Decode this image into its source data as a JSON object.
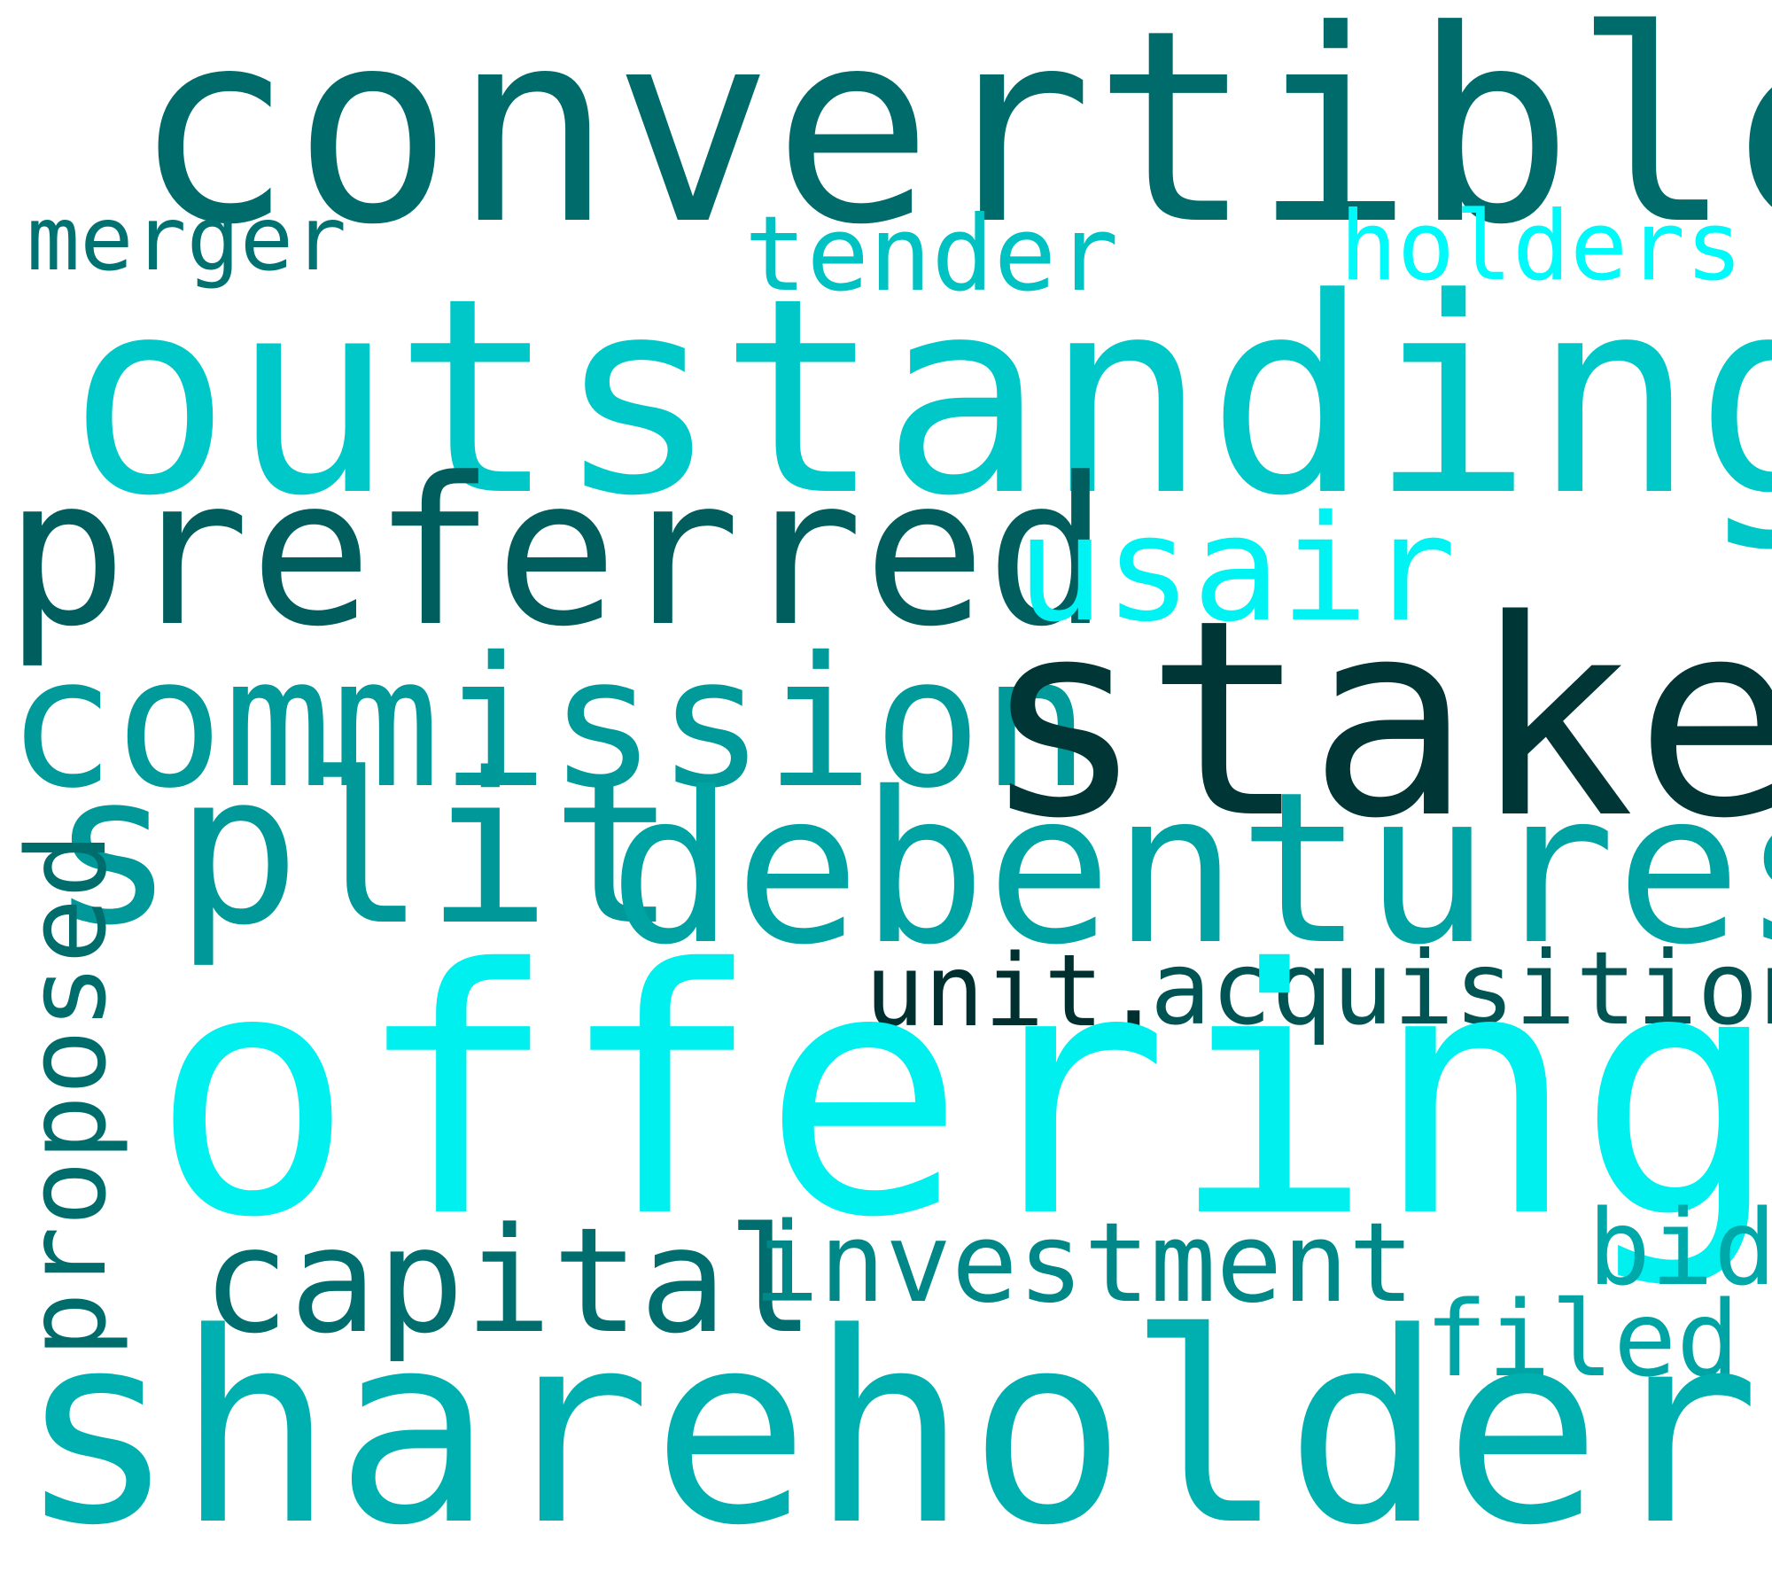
{
  "words": [
    {
      "key": "convertible",
      "text": "convertible",
      "color": "#006b6b"
    },
    {
      "key": "merger",
      "text": "merger",
      "color": "#007272"
    },
    {
      "key": "tender",
      "text": "tender",
      "color": "#00c2c2"
    },
    {
      "key": "holders",
      "text": "holders",
      "color": "#00f9f9"
    },
    {
      "key": "outstanding",
      "text": "outstanding",
      "color": "#00c8c8"
    },
    {
      "key": "preferred",
      "text": "preferred",
      "color": "#005e5e"
    },
    {
      "key": "usair",
      "text": "usair",
      "color": "#00f3f3"
    },
    {
      "key": "commission",
      "text": "commission",
      "color": "#009a9a"
    },
    {
      "key": "stake",
      "text": "stake",
      "color": "#003636"
    },
    {
      "key": "split",
      "text": "split",
      "color": "#009898"
    },
    {
      "key": "debentures",
      "text": "debentures",
      "color": "#00a3a3"
    },
    {
      "key": "unit",
      "text": "unit.",
      "color": "#002f2f"
    },
    {
      "key": "acquisition",
      "text": "acquisition",
      "color": "#005454"
    },
    {
      "key": "offering",
      "text": "offering",
      "color": "#00efef"
    },
    {
      "key": "proposed",
      "text": "proposed",
      "color": "#006d6d"
    },
    {
      "key": "capital",
      "text": "capital",
      "color": "#006e6e"
    },
    {
      "key": "investment",
      "text": "investment",
      "color": "#008888"
    },
    {
      "key": "bid",
      "text": "bid",
      "color": "#00a9a9"
    },
    {
      "key": "filed",
      "text": "filed",
      "color": "#00a4a4"
    },
    {
      "key": "shareholders",
      "text": "shareholders",
      "color": "#00b0b0"
    }
  ]
}
